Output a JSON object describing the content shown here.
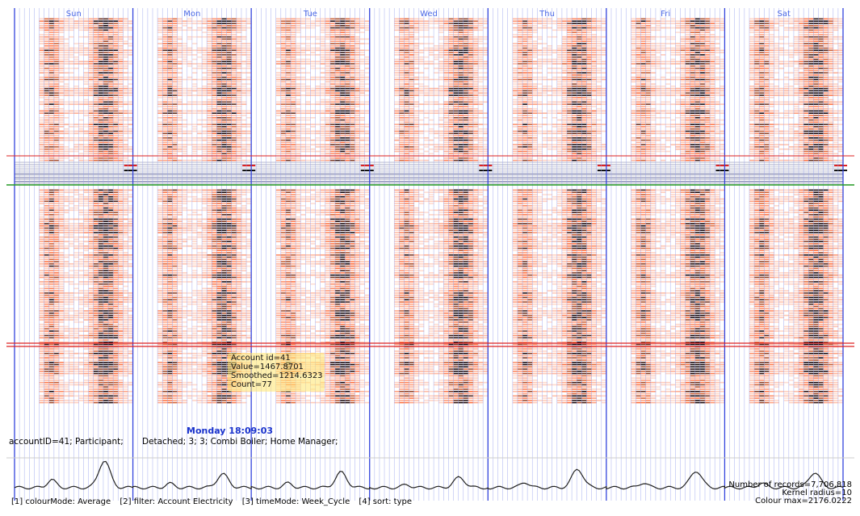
{
  "chart_data": {
    "type": "heatmap",
    "x_axis": {
      "days": [
        "Sun",
        "Mon",
        "Tue",
        "Wed",
        "Thu",
        "Fri",
        "Sat"
      ],
      "time_mode": "Week_Cycle"
    },
    "color_scale": {
      "min_color": "#ffffff",
      "mid_color": "#e8542a",
      "max_color": "#1a1a1a",
      "max_value": 2176.0222
    },
    "grid": true,
    "daily_profile_peaks": [
      {
        "day": "Sun",
        "value": 0.8
      },
      {
        "day": "Mon",
        "value": 0.4
      },
      {
        "day": "Tue",
        "value": 0.45
      },
      {
        "day": "Wed",
        "value": 0.3
      },
      {
        "day": "Thu",
        "value": 0.55
      },
      {
        "day": "Fri",
        "value": 0.5
      },
      {
        "day": "Sat",
        "value": 0.45
      }
    ]
  },
  "tooltip": {
    "account_id": "Account id=41",
    "value": "Value=1467.8701",
    "smoothed": "Smoothed=1214.6323",
    "count": "Count=77"
  },
  "hover": {
    "time": "Monday 18:09:03",
    "account_info": "accountID=41; Participant;",
    "account_attrs": "Detached; 3; 3; Combi Boiler; Home Manager;"
  },
  "stats": {
    "records": "Number of records=7,706,818",
    "kernel": "Kernel radius=10",
    "colour_max": "Colour max=2176.0222"
  },
  "controls": {
    "colour_mode": "[1] colourMode: Average",
    "filter": "[2] filter: Account Electricity",
    "time_mode": "[3] timeMode: Week_Cycle",
    "sort": "[4] sort: type"
  },
  "colors": {
    "day_line": "#3344dd",
    "hour_line": "#9aa4ee",
    "green_line": "#229922",
    "red_line": "#dd2222",
    "curve": "#222222"
  }
}
